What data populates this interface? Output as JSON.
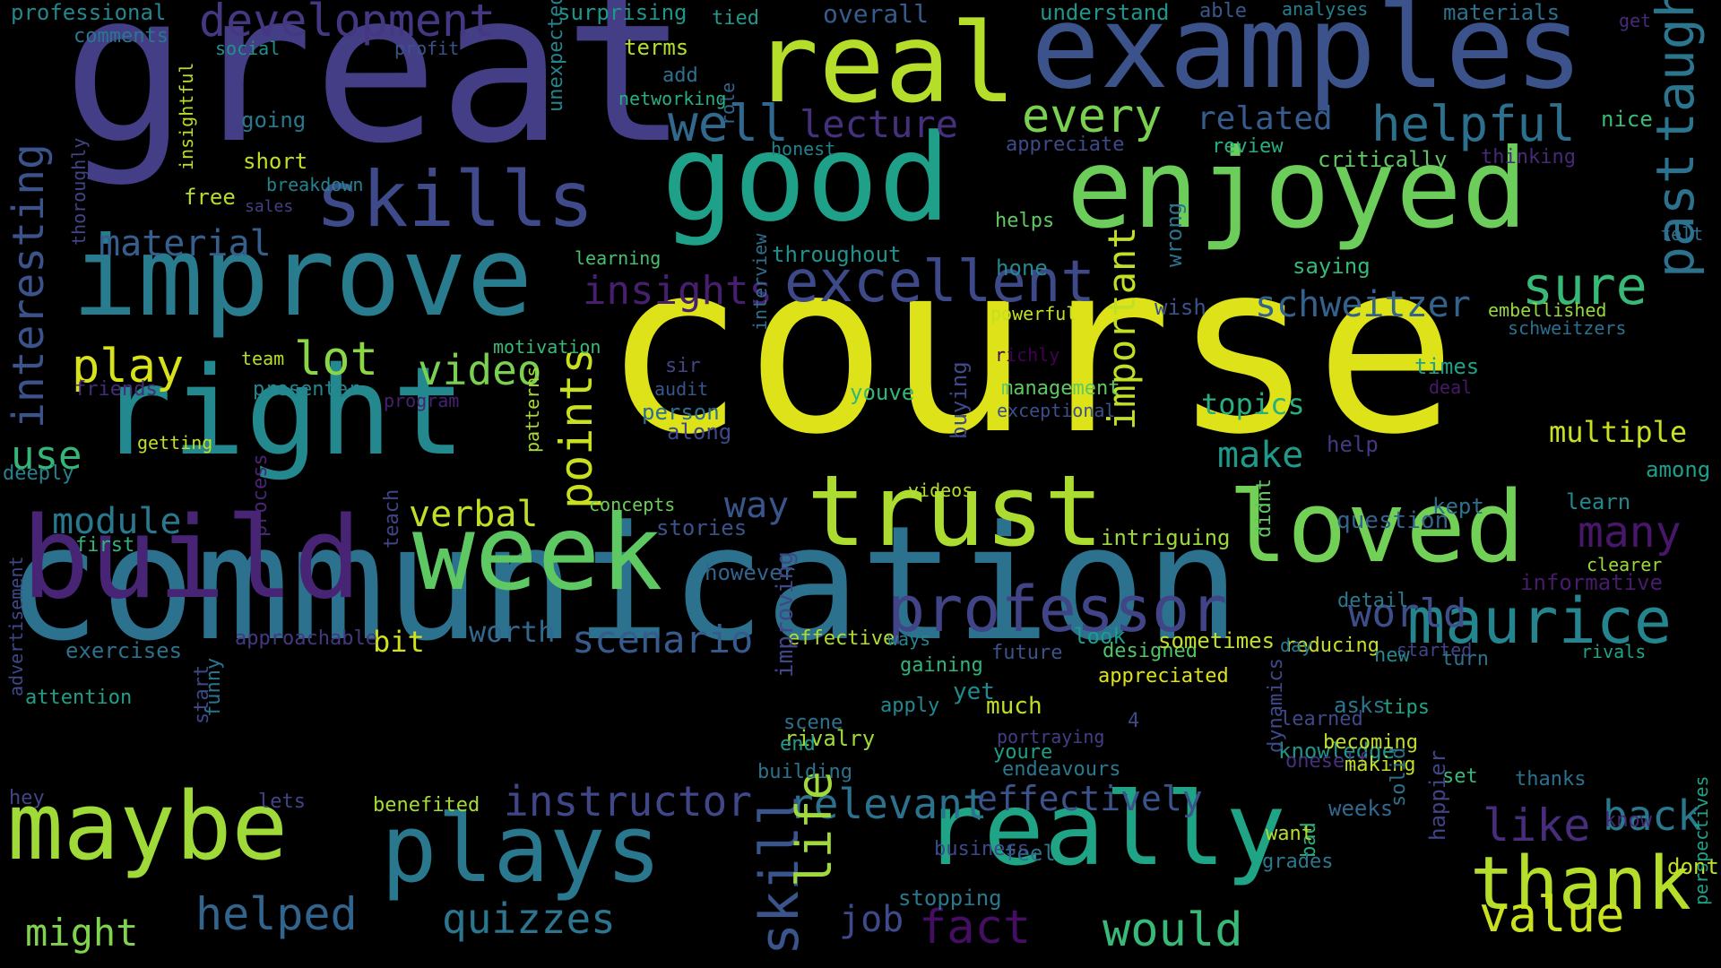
{
  "words": [
    {
      "text": "course",
      "color": "#dde318"
    },
    {
      "text": "communication",
      "color": "#2c728e"
    },
    {
      "text": "great",
      "color": "#433e85"
    },
    {
      "text": "examples",
      "color": "#3b528b"
    },
    {
      "text": "real",
      "color": "#b5de2b"
    },
    {
      "text": "good",
      "color": "#1fa088"
    },
    {
      "text": "enjoyed",
      "color": "#6ccd5a"
    },
    {
      "text": "improve",
      "color": "#287c8e"
    },
    {
      "text": "right",
      "color": "#23898e"
    },
    {
      "text": "build",
      "color": "#482475"
    },
    {
      "text": "week",
      "color": "#5ec962"
    },
    {
      "text": "trust",
      "color": "#addc30"
    },
    {
      "text": "loved",
      "color": "#73d056"
    },
    {
      "text": "really",
      "color": "#20a486"
    },
    {
      "text": "maybe",
      "color": "#a0da39"
    },
    {
      "text": "plays",
      "color": "#2a788e"
    },
    {
      "text": "skills",
      "color": "#3e4a89"
    },
    {
      "text": "professor",
      "color": "#414487"
    },
    {
      "text": "maurice",
      "color": "#25858e"
    },
    {
      "text": "thank",
      "color": "#b5de2b"
    },
    {
      "text": "development",
      "color": "#453781"
    },
    {
      "text": "excellent",
      "color": "#3e4989"
    },
    {
      "text": "helpful",
      "color": "#2d708e"
    },
    {
      "text": "every",
      "color": "#7ad151"
    },
    {
      "text": "well",
      "color": "#31688e"
    },
    {
      "text": "lecture",
      "color": "#46307e"
    },
    {
      "text": "related",
      "color": "#365c8d"
    },
    {
      "text": "past",
      "color": "#2c728e"
    },
    {
      "text": "taught",
      "color": "#2a768e"
    },
    {
      "text": "insights",
      "color": "#481f70"
    },
    {
      "text": "schweitzer",
      "color": "#33638d"
    },
    {
      "text": "sure",
      "color": "#38b977"
    },
    {
      "text": "material",
      "color": "#355f8d"
    },
    {
      "text": "interesting",
      "color": "#3b528b"
    },
    {
      "text": "play",
      "color": "#d8e219"
    },
    {
      "text": "lot",
      "color": "#8bd646"
    },
    {
      "text": "video",
      "color": "#7ad151"
    },
    {
      "text": "points",
      "color": "#c8e020"
    },
    {
      "text": "important",
      "color": "#c0df25"
    },
    {
      "text": "topics",
      "color": "#29af7f"
    },
    {
      "text": "make",
      "color": "#1f9a8a"
    },
    {
      "text": "multiple",
      "color": "#c8e020"
    },
    {
      "text": "use",
      "color": "#34b679"
    },
    {
      "text": "module",
      "color": "#2a788e"
    },
    {
      "text": "verbal",
      "color": "#c0df25"
    },
    {
      "text": "way",
      "color": "#39568c"
    },
    {
      "text": "many",
      "color": "#481769"
    },
    {
      "text": "scenario",
      "color": "#365c8d"
    },
    {
      "text": "world",
      "color": "#3d4e8a"
    },
    {
      "text": "worth",
      "color": "#31688e"
    },
    {
      "text": "bit",
      "color": "#d0e11c"
    },
    {
      "text": "instructor",
      "color": "#3f4788"
    },
    {
      "text": "relevant",
      "color": "#2c728e"
    },
    {
      "text": "effectively",
      "color": "#3b528b"
    },
    {
      "text": "like",
      "color": "#472d7b"
    },
    {
      "text": "back",
      "color": "#2a788e"
    },
    {
      "text": "skill",
      "color": "#3a548c"
    },
    {
      "text": "life",
      "color": "#9fda3a"
    },
    {
      "text": "job",
      "color": "#3e4a89"
    },
    {
      "text": "fact",
      "color": "#440f62"
    },
    {
      "text": "would",
      "color": "#38b977"
    },
    {
      "text": "value",
      "color": "#cae11f"
    },
    {
      "text": "helped",
      "color": "#32658e"
    },
    {
      "text": "quizzes",
      "color": "#2b758e"
    },
    {
      "text": "might",
      "color": "#7fd34e"
    },
    {
      "text": "professional",
      "color": "#24868e"
    },
    {
      "text": "comments",
      "color": "#2a768e"
    },
    {
      "text": "surprising",
      "color": "#1f968b"
    },
    {
      "text": "tied",
      "color": "#1e9b8a"
    },
    {
      "text": "overall",
      "color": "#365c8d"
    },
    {
      "text": "understand",
      "color": "#1f958b"
    },
    {
      "text": "able",
      "color": "#38588c"
    },
    {
      "text": "analyses",
      "color": "#277f8e"
    },
    {
      "text": "materials",
      "color": "#2c718e"
    },
    {
      "text": "get",
      "color": "#472a7a"
    },
    {
      "text": "social",
      "color": "#20928c"
    },
    {
      "text": "profit",
      "color": "#3b528b"
    },
    {
      "text": "insightful",
      "color": "#b8de29"
    },
    {
      "text": "role",
      "color": "#33638d"
    },
    {
      "text": "unexpected",
      "color": "#25848e"
    },
    {
      "text": "terms",
      "color": "#b5de2b"
    },
    {
      "text": "add",
      "color": "#2d708e"
    },
    {
      "text": "networking",
      "color": "#29af7f"
    },
    {
      "text": "nice",
      "color": "#3aba76"
    },
    {
      "text": "going",
      "color": "#2a788e"
    },
    {
      "text": "short",
      "color": "#c0df25"
    },
    {
      "text": "breakdown",
      "color": "#25838e"
    },
    {
      "text": "free",
      "color": "#b5de2b"
    },
    {
      "text": "sales",
      "color": "#424086"
    },
    {
      "text": "honest",
      "color": "#26818e"
    },
    {
      "text": "appreciate",
      "color": "#3e4a89"
    },
    {
      "text": "review",
      "color": "#29af7f"
    },
    {
      "text": "critically",
      "color": "#5ec962"
    },
    {
      "text": "thinking",
      "color": "#482878"
    },
    {
      "text": "thoroughly",
      "color": "#414487"
    },
    {
      "text": "helps",
      "color": "#5ec962"
    },
    {
      "text": "felt",
      "color": "#2e6e8e"
    },
    {
      "text": "learning",
      "color": "#48c16e"
    },
    {
      "text": "throughout",
      "color": "#21918c"
    },
    {
      "text": "hone",
      "color": "#24878e"
    },
    {
      "text": "wrong",
      "color": "#2c728e"
    },
    {
      "text": "saying",
      "color": "#37b878"
    },
    {
      "text": "wish",
      "color": "#3b528b"
    },
    {
      "text": "powerful",
      "color": "#c2df23"
    },
    {
      "text": "embellished",
      "color": "#95d840"
    },
    {
      "text": "schweitzers",
      "color": "#2d708e"
    },
    {
      "text": "team",
      "color": "#b5de2b"
    },
    {
      "text": "interview",
      "color": "#2e6f8e"
    },
    {
      "text": "motivation",
      "color": "#3aba76"
    },
    {
      "text": "richly",
      "color": "#440154"
    },
    {
      "text": "sir",
      "color": "#414487"
    },
    {
      "text": "audit",
      "color": "#39568c"
    },
    {
      "text": "friends",
      "color": "#472c7a"
    },
    {
      "text": "presenter",
      "color": "#25858e"
    },
    {
      "text": "program",
      "color": "#482173"
    },
    {
      "text": "buying",
      "color": "#3e4989"
    },
    {
      "text": "management",
      "color": "#5ec962"
    },
    {
      "text": "exceptional",
      "color": "#3c4f8a"
    },
    {
      "text": "times",
      "color": "#1fa187"
    },
    {
      "text": "deal",
      "color": "#48186a"
    },
    {
      "text": "youve",
      "color": "#34b679"
    },
    {
      "text": "person",
      "color": "#2d708e"
    },
    {
      "text": "along",
      "color": "#3e4989"
    },
    {
      "text": "getting",
      "color": "#c2df23"
    },
    {
      "text": "patterns",
      "color": "#a8db34"
    },
    {
      "text": "deeply",
      "color": "#26818e"
    },
    {
      "text": "help",
      "color": "#453781"
    },
    {
      "text": "among",
      "color": "#1f9e89"
    },
    {
      "text": "videos",
      "color": "#b5de2b"
    },
    {
      "text": "learn",
      "color": "#24878e"
    },
    {
      "text": "kept",
      "color": "#2d708e"
    },
    {
      "text": "question",
      "color": "#33638d"
    },
    {
      "text": "concepts",
      "color": "#6ccd5a"
    },
    {
      "text": "didnt",
      "color": "#5ec962"
    },
    {
      "text": "process",
      "color": "#482576"
    },
    {
      "text": "stories",
      "color": "#3b528b"
    },
    {
      "text": "intriguing",
      "color": "#9bd93c"
    },
    {
      "text": "clearer",
      "color": "#9bd93c"
    },
    {
      "text": "first",
      "color": "#2fb47c"
    },
    {
      "text": "teach",
      "color": "#414487"
    },
    {
      "text": "however",
      "color": "#32648e"
    },
    {
      "text": "look",
      "color": "#1e9c89"
    },
    {
      "text": "detail",
      "color": "#2a788e"
    },
    {
      "text": "informative",
      "color": "#481b6d"
    },
    {
      "text": "approachable",
      "color": "#453882"
    },
    {
      "text": "effective",
      "color": "#b2dd2d"
    },
    {
      "text": "attention",
      "color": "#1fa088"
    },
    {
      "text": "designed",
      "color": "#50c46a"
    },
    {
      "text": "exercises",
      "color": "#2d708e"
    },
    {
      "text": "ways",
      "color": "#26828e"
    },
    {
      "text": "gaining",
      "color": "#2fb47c"
    },
    {
      "text": "future",
      "color": "#3b528b"
    },
    {
      "text": "sometimes",
      "color": "#c0df25"
    },
    {
      "text": "reducing",
      "color": "#c8e020"
    },
    {
      "text": "started",
      "color": "#414487"
    },
    {
      "text": "appreciated",
      "color": "#dde318"
    },
    {
      "text": "turn",
      "color": "#2c728e"
    },
    {
      "text": "rivals",
      "color": "#20a386"
    },
    {
      "text": "advertisement",
      "color": "#3e4989"
    },
    {
      "text": "improving",
      "color": "#3f4788"
    },
    {
      "text": "yet",
      "color": "#23898e"
    },
    {
      "text": "day",
      "color": "#287c8e"
    },
    {
      "text": "new",
      "color": "#23898e"
    },
    {
      "text": "scene",
      "color": "#2c728e"
    },
    {
      "text": "tips",
      "color": "#20a386"
    },
    {
      "text": "asks",
      "color": "#2a768e"
    },
    {
      "text": "funny",
      "color": "#2b748e"
    },
    {
      "text": "apply",
      "color": "#24878e"
    },
    {
      "text": "much",
      "color": "#bddf26"
    },
    {
      "text": "rivalry",
      "color": "#a0da39"
    },
    {
      "text": "start",
      "color": "#3f4788"
    },
    {
      "text": "end",
      "color": "#1f9a8a"
    },
    {
      "text": "learned",
      "color": "#3e4989"
    },
    {
      "text": "4",
      "color": "#3e4989"
    },
    {
      "text": "portraying",
      "color": "#433e85"
    },
    {
      "text": "knowledge",
      "color": "#1f968b"
    },
    {
      "text": "becoming",
      "color": "#c0df25"
    },
    {
      "text": "building",
      "color": "#2c728e"
    },
    {
      "text": "oneself",
      "color": "#462f7c"
    },
    {
      "text": "thanks",
      "color": "#2d708e"
    },
    {
      "text": "endeavours",
      "color": "#2a788e"
    },
    {
      "text": "dynamics",
      "color": "#3e4989"
    },
    {
      "text": "set",
      "color": "#38b977"
    },
    {
      "text": "making",
      "color": "#c0df25"
    },
    {
      "text": "youre",
      "color": "#1fa088"
    },
    {
      "text": "solid",
      "color": "#2d708e"
    },
    {
      "text": "hey",
      "color": "#414487"
    },
    {
      "text": "lets",
      "color": "#414487"
    },
    {
      "text": "benefited",
      "color": "#a5db36"
    },
    {
      "text": "weeks",
      "color": "#31688e"
    },
    {
      "text": "know",
      "color": "#482878"
    },
    {
      "text": "happier",
      "color": "#414487"
    },
    {
      "text": "feel",
      "color": "#2c728e"
    },
    {
      "text": "bad",
      "color": "#29af7f"
    },
    {
      "text": "want",
      "color": "#b5de2b"
    },
    {
      "text": "business",
      "color": "#3e4989"
    },
    {
      "text": "grades",
      "color": "#2a788e"
    },
    {
      "text": "dont",
      "color": "#c0df25"
    },
    {
      "text": "perspectives",
      "color": "#1fa187"
    },
    {
      "text": "stopping",
      "color": "#2a788e"
    }
  ]
}
